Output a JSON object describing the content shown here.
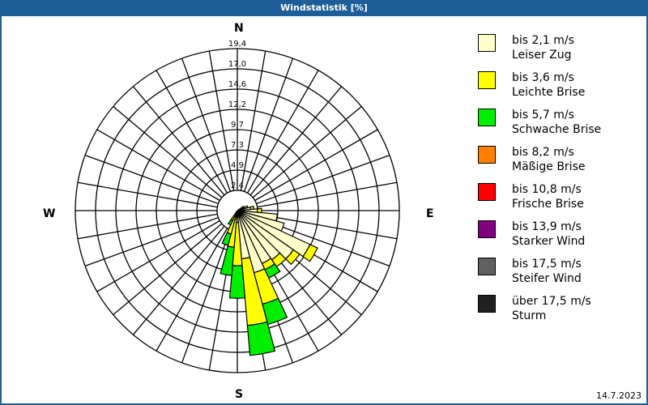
{
  "window": {
    "title": "Windstatistik [%]"
  },
  "footer": {
    "date": "14.7.2023"
  },
  "compass": {
    "n": "N",
    "e": "E",
    "s": "S",
    "w": "W"
  },
  "legend": [
    {
      "color": "#ffffcc",
      "line1": "bis 2,1 m/s",
      "line2": "Leiser Zug"
    },
    {
      "color": "#ffff00",
      "line1": "bis 3,6 m/s",
      "line2": "Leichte Brise"
    },
    {
      "color": "#00ee00",
      "line1": "bis 5,7 m/s",
      "line2": "Schwache Brise"
    },
    {
      "color": "#ff8000",
      "line1": "bis 8,2 m/s",
      "line2": "Mäßige Brise"
    },
    {
      "color": "#ff0000",
      "line1": "bis 10,8 m/s",
      "line2": "Frische Brise"
    },
    {
      "color": "#800080",
      "line1": "bis 13,9 m/s",
      "line2": "Starker Wind"
    },
    {
      "color": "#606060",
      "line1": "bis 17,5 m/s",
      "line2": "Steifer Wind"
    },
    {
      "color": "#202020",
      "line1": "über 17,5 m/s",
      "line2": "Sturm"
    }
  ],
  "chart_data": {
    "type": "wind-rose",
    "title": "Windstatistik [%]",
    "radial_ticks": [
      "2,4",
      "4,9",
      "7,3",
      "9,7",
      "12,2",
      "14,6",
      "17,0",
      "19,4"
    ],
    "radial_max": 19.4,
    "sector_width_deg": 10,
    "directions_deg": [
      60,
      70,
      80,
      90,
      100,
      110,
      120,
      130,
      140,
      150,
      160,
      170,
      180,
      190,
      200,
      210
    ],
    "series": [
      {
        "name": "bis 2,1 m/s",
        "color": "#ffffcc",
        "values": [
          0.6,
          1.0,
          1.6,
          2.4,
          4.8,
          5.8,
          9.6,
          8.2,
          7.2,
          7.0,
          7.7,
          5.8,
          1.4,
          0.7,
          0.4,
          0.3
        ]
      },
      {
        "name": "bis 3,6 m/s",
        "color": "#ffff00",
        "values": [
          0.3,
          0.3,
          0.4,
          0.5,
          0.0,
          0.0,
          1.0,
          0.9,
          1.0,
          0.8,
          3.9,
          8.0,
          5.2,
          3.7,
          2.5,
          1.0
        ]
      },
      {
        "name": "bis 5,7 m/s",
        "color": "#00ee00",
        "values": [
          0.0,
          0.0,
          0.0,
          0.0,
          0.0,
          0.0,
          0.0,
          0.0,
          0.0,
          1.1,
          2.5,
          3.6,
          3.9,
          3.4,
          1.4,
          0.6
        ]
      },
      {
        "name": "bis 8,2 m/s",
        "color": "#ff8000",
        "values": [
          0,
          0,
          0,
          0,
          0,
          0,
          0,
          0,
          0,
          0,
          0,
          0,
          0,
          0,
          0,
          0
        ]
      },
      {
        "name": "bis 10,8 m/s",
        "color": "#ff0000",
        "values": [
          0,
          0,
          0,
          0,
          0,
          0,
          0,
          0,
          0,
          0,
          0,
          0,
          0,
          0,
          0,
          0
        ]
      },
      {
        "name": "bis 13,9 m/s",
        "color": "#800080",
        "values": [
          0,
          0,
          0,
          0,
          0,
          0,
          0,
          0,
          0,
          0,
          0,
          0,
          0,
          0,
          0,
          0
        ]
      },
      {
        "name": "bis 17,5 m/s",
        "color": "#606060",
        "values": [
          0,
          0,
          0,
          0,
          0,
          0,
          0,
          0,
          0,
          0,
          0,
          0,
          0,
          0,
          0,
          0
        ]
      },
      {
        "name": "über 17,5 m/s",
        "color": "#202020",
        "values": [
          0,
          0,
          0,
          0,
          0,
          0,
          0,
          0,
          0,
          0,
          0,
          0,
          0,
          0,
          0,
          0
        ]
      }
    ],
    "legend_position": "right",
    "grid": true
  }
}
